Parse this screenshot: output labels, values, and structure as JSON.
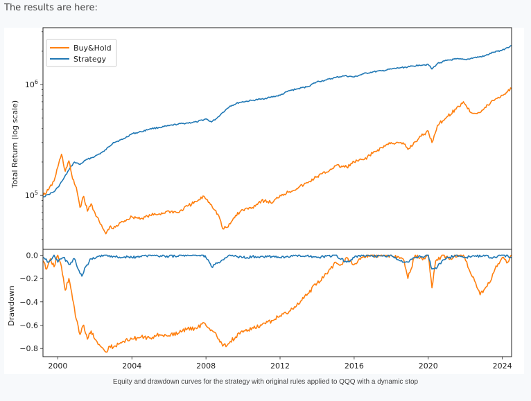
{
  "intro_text": "The results are here:",
  "caption": "Equity and drawdown curves for the strategy with original rules applied to QQQ with a dynamic stop",
  "colors": {
    "buyhold": "#ff7f0e",
    "strategy": "#1f77b4",
    "axis": "#222222",
    "background": "#f7f9fb"
  },
  "chart_data": [
    {
      "type": "line",
      "panel": "equity",
      "title": "",
      "xlabel": "",
      "ylabel": "Total Return (log scale)",
      "yscale": "log",
      "xlim": [
        1999.2,
        2024.5
      ],
      "ylim": [
        32600,
        3260000
      ],
      "yticks": [
        {
          "value": 100000,
          "base": "10",
          "exp": "5"
        },
        {
          "value": 1000000,
          "base": "10",
          "exp": "6"
        }
      ],
      "legend": {
        "position": "top-left",
        "entries": [
          "Buy&Hold",
          "Strategy"
        ]
      },
      "series": [
        {
          "name": "Buy&Hold",
          "x": [
            1999.2,
            1999.5,
            1999.8,
            2000.0,
            2000.2,
            2000.4,
            2000.6,
            2000.8,
            2001.0,
            2001.2,
            2001.4,
            2001.6,
            2001.8,
            2002.0,
            2002.3,
            2002.6,
            2002.8,
            2003.0,
            2003.5,
            2004.0,
            2004.5,
            2005.0,
            2005.5,
            2006.0,
            2006.5,
            2007.0,
            2007.5,
            2007.9,
            2008.3,
            2008.7,
            2008.9,
            2009.2,
            2009.6,
            2010.0,
            2010.5,
            2011.0,
            2011.6,
            2012.0,
            2012.5,
            2013.0,
            2013.5,
            2014.0,
            2014.5,
            2015.0,
            2015.6,
            2016.0,
            2016.5,
            2017.0,
            2017.5,
            2018.0,
            2018.7,
            2018.9,
            2019.5,
            2020.0,
            2020.2,
            2020.5,
            2021.0,
            2021.5,
            2021.9,
            2022.3,
            2022.8,
            2023.0,
            2023.5,
            2024.0,
            2024.5
          ],
          "y": [
            100000,
            112000,
            135000,
            180000,
            235000,
            165000,
            205000,
            140000,
            118000,
            78000,
            98000,
            72000,
            84000,
            70000,
            55000,
            45000,
            52000,
            50000,
            58000,
            64000,
            62000,
            66000,
            68000,
            72000,
            70000,
            80000,
            88000,
            98000,
            82000,
            65000,
            50000,
            52000,
            66000,
            74000,
            78000,
            90000,
            86000,
            100000,
            108000,
            118000,
            130000,
            148000,
            162000,
            185000,
            180000,
            200000,
            210000,
            240000,
            270000,
            300000,
            290000,
            260000,
            330000,
            380000,
            300000,
            430000,
            510000,
            600000,
            700000,
            560000,
            560000,
            600000,
            720000,
            800000,
            920000
          ]
        },
        {
          "name": "Strategy",
          "x": [
            1999.2,
            1999.5,
            1999.8,
            2000.0,
            2000.3,
            2000.6,
            2000.9,
            2001.2,
            2001.5,
            2002.0,
            2002.5,
            2003.0,
            2003.5,
            2004.0,
            2004.5,
            2005.0,
            2005.5,
            2006.0,
            2006.5,
            2007.0,
            2007.5,
            2008.0,
            2008.3,
            2008.6,
            2008.9,
            2009.3,
            2009.8,
            2010.5,
            2011.0,
            2011.5,
            2012.0,
            2012.5,
            2013.0,
            2013.5,
            2014.0,
            2014.5,
            2015.0,
            2015.5,
            2016.0,
            2016.5,
            2017.0,
            2017.5,
            2018.0,
            2018.5,
            2019.0,
            2019.5,
            2020.0,
            2020.2,
            2020.5,
            2021.0,
            2021.5,
            2022.0,
            2022.5,
            2023.0,
            2023.5,
            2024.0,
            2024.5
          ],
          "y": [
            97000,
            102000,
            108000,
            118000,
            140000,
            170000,
            200000,
            190000,
            208000,
            225000,
            250000,
            300000,
            320000,
            360000,
            375000,
            400000,
            410000,
            425000,
            440000,
            450000,
            460000,
            490000,
            460000,
            500000,
            560000,
            640000,
            690000,
            720000,
            740000,
            770000,
            800000,
            880000,
            920000,
            960000,
            1060000,
            1100000,
            1160000,
            1200000,
            1170000,
            1250000,
            1300000,
            1330000,
            1380000,
            1420000,
            1450000,
            1500000,
            1520000,
            1380000,
            1550000,
            1650000,
            1700000,
            1680000,
            1750000,
            1800000,
            1950000,
            2050000,
            2250000
          ]
        }
      ]
    },
    {
      "type": "line",
      "panel": "drawdown",
      "title": "",
      "xlabel": "",
      "ylabel": "Drawdown",
      "xlim": [
        1999.2,
        2024.5
      ],
      "ylim": [
        -0.87,
        0.05
      ],
      "yticks": [
        0.0,
        -0.2,
        -0.4,
        -0.6,
        -0.8
      ],
      "ytick_labels": [
        "0.0",
        "−0.2",
        "−0.4",
        "−0.6",
        "−0.8"
      ],
      "xticks": [
        2000,
        2004,
        2008,
        2012,
        2016,
        2020,
        2024
      ],
      "xtick_labels": [
        "2000",
        "2004",
        "2008",
        "2012",
        "2016",
        "2020",
        "2024"
      ],
      "series": [
        {
          "name": "Buy&Hold",
          "x": [
            1999.2,
            1999.4,
            1999.6,
            1999.8,
            2000.0,
            2000.2,
            2000.4,
            2000.6,
            2000.8,
            2001.0,
            2001.2,
            2001.4,
            2001.6,
            2001.8,
            2002.0,
            2002.3,
            2002.6,
            2002.8,
            2003.0,
            2003.5,
            2004.0,
            2004.5,
            2005.0,
            2005.5,
            2006.0,
            2006.5,
            2007.0,
            2007.5,
            2007.9,
            2008.3,
            2008.7,
            2008.9,
            2009.2,
            2009.6,
            2010.0,
            2010.5,
            2011.0,
            2011.6,
            2012.0,
            2012.5,
            2013.0,
            2013.5,
            2014.0,
            2014.5,
            2015.0,
            2015.3,
            2015.6,
            2016.0,
            2016.5,
            2017.0,
            2017.5,
            2018.0,
            2018.7,
            2018.9,
            2019.3,
            2019.7,
            2020.0,
            2020.2,
            2020.4,
            2020.8,
            2021.2,
            2021.6,
            2021.9,
            2022.2,
            2022.5,
            2022.8,
            2023.0,
            2023.3,
            2023.6,
            2024.0,
            2024.3,
            2024.5
          ],
          "y": [
            -0.05,
            -0.12,
            -0.03,
            -0.1,
            0.0,
            -0.1,
            -0.3,
            -0.2,
            -0.38,
            -0.55,
            -0.68,
            -0.6,
            -0.72,
            -0.65,
            -0.72,
            -0.78,
            -0.83,
            -0.78,
            -0.79,
            -0.74,
            -0.72,
            -0.7,
            -0.71,
            -0.68,
            -0.69,
            -0.67,
            -0.63,
            -0.63,
            -0.58,
            -0.64,
            -0.72,
            -0.78,
            -0.76,
            -0.7,
            -0.66,
            -0.62,
            -0.6,
            -0.56,
            -0.52,
            -0.48,
            -0.42,
            -0.33,
            -0.24,
            -0.16,
            -0.06,
            -0.08,
            -0.02,
            -0.08,
            -0.01,
            0.0,
            0.0,
            0.0,
            -0.05,
            -0.2,
            0.0,
            -0.04,
            0.0,
            -0.28,
            -0.05,
            0.0,
            -0.03,
            0.0,
            0.0,
            -0.12,
            -0.22,
            -0.34,
            -0.3,
            -0.24,
            -0.12,
            -0.02,
            -0.06,
            0.0
          ]
        },
        {
          "name": "Strategy",
          "x": [
            1999.2,
            1999.5,
            1999.8,
            2000.0,
            2000.3,
            2000.6,
            2000.9,
            2001.1,
            2001.3,
            2001.5,
            2001.8,
            2002.2,
            2002.6,
            2003.0,
            2004.0,
            2005.0,
            2006.0,
            2007.0,
            2007.8,
            2008.0,
            2008.3,
            2008.6,
            2008.9,
            2009.3,
            2010.0,
            2011.0,
            2012.0,
            2013.0,
            2014.0,
            2015.0,
            2015.6,
            2016.0,
            2016.5,
            2017.0,
            2018.0,
            2018.5,
            2018.9,
            2019.3,
            2020.0,
            2020.2,
            2020.5,
            2020.8,
            2021.5,
            2022.0,
            2022.5,
            2023.0,
            2023.5,
            2024.0,
            2024.5
          ],
          "y": [
            -0.02,
            -0.06,
            0.0,
            -0.06,
            -0.02,
            -0.08,
            -0.03,
            -0.12,
            -0.18,
            -0.1,
            -0.03,
            -0.01,
            0.0,
            -0.01,
            -0.02,
            0.0,
            -0.01,
            0.0,
            0.0,
            -0.02,
            -0.1,
            -0.07,
            -0.04,
            0.0,
            -0.02,
            -0.01,
            -0.02,
            0.0,
            -0.02,
            0.0,
            -0.06,
            -0.02,
            0.0,
            -0.01,
            0.0,
            -0.05,
            -0.06,
            -0.02,
            0.0,
            -0.12,
            -0.1,
            -0.04,
            0.0,
            -0.02,
            -0.01,
            0.0,
            -0.02,
            0.0,
            -0.02
          ]
        }
      ]
    }
  ]
}
